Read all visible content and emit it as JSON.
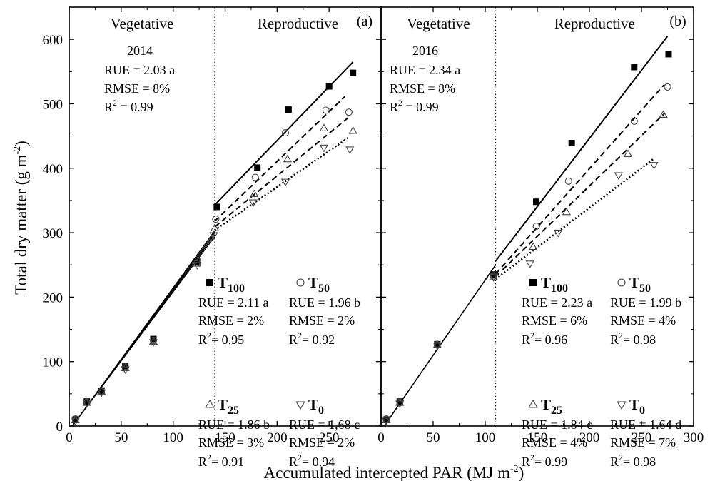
{
  "chart_data": [
    {
      "type": "scatter",
      "panel_label": "(a)",
      "phase_labels": [
        "Vegetative",
        "Reproductive"
      ],
      "phase_boundary_x": 140,
      "year": "2014",
      "pooled_fit": {
        "rue": "RUE = 2.03 a",
        "rmse": "RMSE = 8%",
        "r2": "0.99"
      },
      "xlim": [
        0,
        300
      ],
      "ylim": [
        0,
        650
      ],
      "series": [
        {
          "name": "T100",
          "base": "T",
          "sub": "100",
          "marker": "square-filled",
          "stats": {
            "rue": "RUE = 2.11 a",
            "rmse": "RMSE = 2%",
            "r2": "0.95"
          },
          "points": [
            [
              6,
              10
            ],
            [
              17,
              38
            ],
            [
              31,
              55
            ],
            [
              54,
              93
            ],
            [
              81,
              135
            ],
            [
              123,
              255
            ],
            [
              142,
              340
            ],
            [
              181,
              401
            ],
            [
              211,
              491
            ],
            [
              250,
              527
            ],
            [
              273,
              548
            ]
          ],
          "veg_fit": [
            [
              3,
              0
            ],
            [
              140,
              303
            ]
          ],
          "rep_fit": [
            [
              140,
              343
            ],
            [
              273,
              565
            ]
          ],
          "rep_style": "solid"
        },
        {
          "name": "T50",
          "base": "T",
          "sub": "50",
          "marker": "circle-open",
          "stats": {
            "rue": "RUE = 1.96 b",
            "rmse": "RMSE = 2%",
            "r2": "0.92"
          },
          "points": [
            [
              6,
              11
            ],
            [
              17,
              37
            ],
            [
              31,
              54
            ],
            [
              54,
              92
            ],
            [
              81,
              133
            ],
            [
              123,
              253
            ],
            [
              141,
              321
            ],
            [
              179,
              386
            ],
            [
              208,
              455
            ],
            [
              247,
              490
            ],
            [
              269,
              487
            ]
          ],
          "veg_fit": [
            [
              3,
              0
            ],
            [
              140,
              300
            ]
          ],
          "rep_fit": [
            [
              140,
              318
            ],
            [
              265,
              511
            ]
          ],
          "rep_style": "dashed"
        },
        {
          "name": "T25",
          "base": "T",
          "sub": "25",
          "marker": "triangle-up-open",
          "stats": {
            "rue": "RUE = 1.86 b",
            "rmse": "RMSE = 3%",
            "r2": "0.91"
          },
          "points": [
            [
              6,
              9
            ],
            [
              17,
              36
            ],
            [
              31,
              53
            ],
            [
              54,
              90
            ],
            [
              81,
              131
            ],
            [
              123,
              252
            ],
            [
              140,
              307
            ],
            [
              178,
              360
            ],
            [
              210,
              414
            ],
            [
              245,
              462
            ],
            [
              273,
              458
            ]
          ],
          "veg_fit": [
            [
              3,
              0
            ],
            [
              140,
              297
            ]
          ],
          "rep_fit": [
            [
              140,
              309
            ],
            [
              268,
              478
            ]
          ],
          "rep_style": "dashed"
        },
        {
          "name": "T0",
          "base": "T",
          "sub": "0",
          "marker": "triangle-down-open",
          "stats": {
            "rue": "RUE = 1,68 c",
            "rmse": "RMSE = 2%",
            "r2": "0.94"
          },
          "points": [
            [
              6,
              8
            ],
            [
              17,
              35
            ],
            [
              31,
              52
            ],
            [
              54,
              88
            ],
            [
              81,
              130
            ],
            [
              123,
              250
            ],
            [
              139,
              296
            ],
            [
              177,
              347
            ],
            [
              208,
              379
            ],
            [
              245,
              432
            ],
            [
              270,
              429
            ]
          ],
          "veg_fit": [
            [
              3,
              0
            ],
            [
              140,
              294
            ]
          ],
          "rep_fit": [
            [
              140,
              304
            ],
            [
              268,
              447
            ]
          ],
          "rep_style": "dotted"
        }
      ]
    },
    {
      "type": "scatter",
      "panel_label": "(b)",
      "phase_labels": [
        "Vegetative",
        "Reproductive"
      ],
      "phase_boundary_x": 110,
      "year": "2016",
      "pooled_fit": {
        "rue": "RUE = 2.34 a",
        "rmse": "RMSE = 8%",
        "r2": "0.99"
      },
      "xlim": [
        0,
        300
      ],
      "ylim": [
        0,
        650
      ],
      "series": [
        {
          "name": "T100",
          "base": "T",
          "sub": "100",
          "marker": "square-filled",
          "stats": {
            "rue": "RUE = 2.23 a",
            "rmse": "RMSE = 6%",
            "r2": "0.96"
          },
          "points": [
            [
              5,
              10
            ],
            [
              18,
              38
            ],
            [
              54,
              127
            ],
            [
              108,
              235
            ],
            [
              149,
              348
            ],
            [
              183,
              439
            ],
            [
              243,
              557
            ],
            [
              276,
              577
            ]
          ],
          "veg_fit": [
            [
              3,
              0
            ],
            [
              110,
              250
            ]
          ],
          "rep_fit": [
            [
              110,
              256
            ],
            [
              275,
              605
            ]
          ],
          "rep_style": "solid"
        },
        {
          "name": "T50",
          "base": "T",
          "sub": "50",
          "marker": "circle-open",
          "stats": {
            "rue": "RUE = 1.99 b",
            "rmse": "RMSE = 4%",
            "r2": "0.98"
          },
          "points": [
            [
              5,
              11
            ],
            [
              18,
              37
            ],
            [
              54,
              126
            ],
            [
              108,
              233
            ],
            [
              149,
              310
            ],
            [
              180,
              380
            ],
            [
              243,
              473
            ],
            [
              275,
              526
            ]
          ],
          "veg_fit": [
            [
              3,
              0
            ],
            [
              110,
              250
            ]
          ],
          "rep_fit": [
            [
              110,
              236
            ],
            [
              272,
              530
            ]
          ],
          "rep_style": "dashed"
        },
        {
          "name": "T25",
          "base": "T",
          "sub": "25",
          "marker": "triangle-up-open",
          "stats": {
            "rue": "RUE = 1.84 c",
            "rmse": "RMSE = 4%",
            "r2": "0.99"
          },
          "points": [
            [
              5,
              9
            ],
            [
              18,
              36
            ],
            [
              54,
              126
            ],
            [
              108,
              232
            ],
            [
              146,
              278
            ],
            [
              178,
              332
            ],
            [
              237,
              422
            ],
            [
              271,
              483
            ]
          ],
          "veg_fit": [
            [
              3,
              0
            ],
            [
              110,
              250
            ]
          ],
          "rep_fit": [
            [
              110,
              232
            ],
            [
              272,
              485
            ]
          ],
          "rep_style": "dashed"
        },
        {
          "name": "T0",
          "base": "T",
          "sub": "0",
          "marker": "triangle-down-open",
          "stats": {
            "rue": "RUE = 1.64 d",
            "rmse": "RMSE = 7%",
            "r2": "0.98"
          },
          "points": [
            [
              5,
              8
            ],
            [
              18,
              35
            ],
            [
              54,
              125
            ],
            [
              108,
              231
            ],
            [
              143,
              252
            ],
            [
              170,
              300
            ],
            [
              228,
              389
            ],
            [
              262,
              405
            ]
          ],
          "veg_fit": [
            [
              3,
              0
            ],
            [
              110,
              250
            ]
          ],
          "rep_fit": [
            [
              110,
              228
            ],
            [
              262,
              415
            ]
          ],
          "rep_style": "dotted"
        }
      ]
    }
  ],
  "axes": {
    "y_title_text": "Total dry matter (g m",
    "y_title_sup": "-2",
    "y_title_close": ")",
    "x_title_text": "Accumulated intercepted PAR (MJ m",
    "x_title_sup": "-2",
    "x_title_close": ")",
    "y_ticks": [
      "0",
      "100",
      "200",
      "300",
      "400",
      "500",
      "600"
    ],
    "x_ticks_a": [
      "0",
      "50",
      "100",
      "150",
      "200",
      "250"
    ],
    "x_ticks_b": [
      "0",
      "50",
      "100",
      "150",
      "200",
      "250",
      "300"
    ]
  }
}
